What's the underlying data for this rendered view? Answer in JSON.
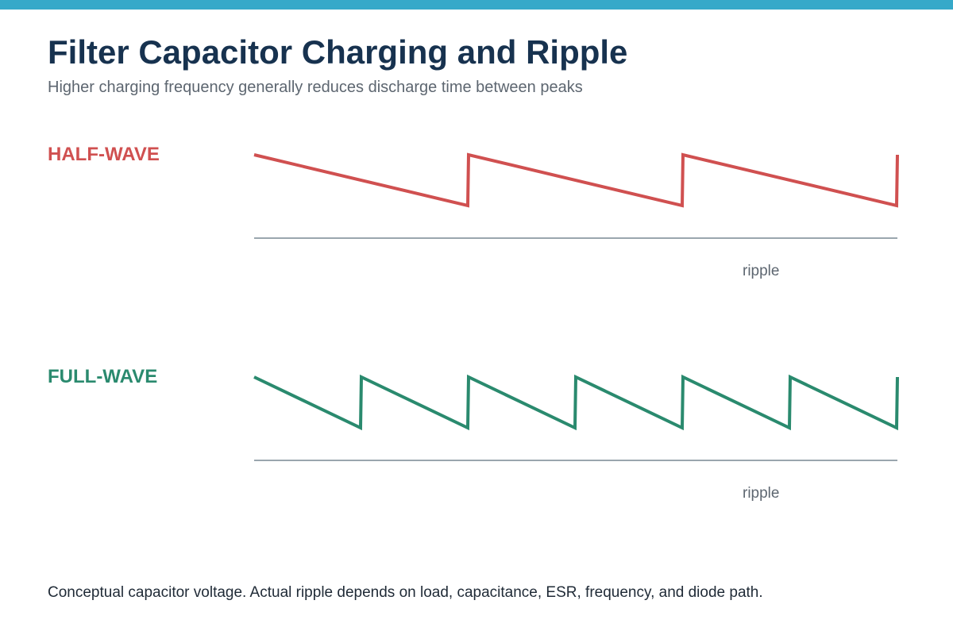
{
  "title": "Filter Capacitor Charging and Ripple",
  "subtitle": "Higher charging frequency generally reduces discharge time between peaks",
  "colors": {
    "accent_bar": "#36a9c9",
    "half_wave": "#d05050",
    "full_wave": "#2a8a6e",
    "baseline": "#9aa6ae"
  },
  "panels": {
    "half_wave": {
      "label": "HALF-WAVE",
      "ripple_label": "ripple",
      "cycles": 3
    },
    "full_wave": {
      "label": "FULL-WAVE",
      "ripple_label": "ripple",
      "cycles": 6
    }
  },
  "footnote": "Conceptual capacitor voltage. Actual ripple depends on load, capacitance, ESR, frequency, and diode path."
}
